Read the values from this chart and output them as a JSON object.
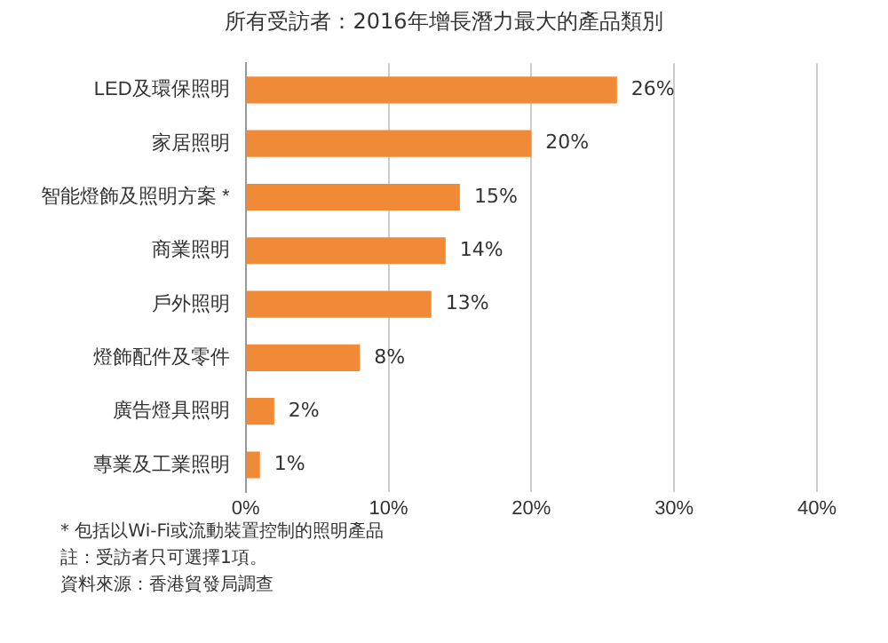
{
  "chart_data": {
    "type": "bar",
    "orientation": "horizontal",
    "title": "所有受訪者：2016年增長潛力最大的產品類別",
    "categories": [
      "LED及環保照明",
      "家居照明",
      "智能燈飾及照明方案 *",
      "商業照明",
      "戶外照明",
      "燈飾配件及零件",
      "廣告燈具照明",
      "專業及工業照明"
    ],
    "values": [
      26,
      20,
      15,
      14,
      13,
      8,
      2,
      1
    ],
    "value_labels": [
      "26%",
      "20%",
      "15%",
      "14%",
      "13%",
      "8%",
      "2%",
      "1%"
    ],
    "color": "#f08a36",
    "xlim": [
      0,
      40
    ],
    "xticks": [
      {
        "value": 0,
        "label": "0%"
      },
      {
        "value": 10,
        "label": "10%"
      },
      {
        "value": 20,
        "label": "20%"
      },
      {
        "value": 30,
        "label": "30%"
      },
      {
        "value": 40,
        "label": "40%"
      }
    ],
    "grid": "x",
    "annotations": [
      "* 包括以Wi-Fi或流動裝置控制的照明產品",
      "註：受訪者只可選擇1項。",
      "資料來源：香港貿發局調查"
    ]
  }
}
